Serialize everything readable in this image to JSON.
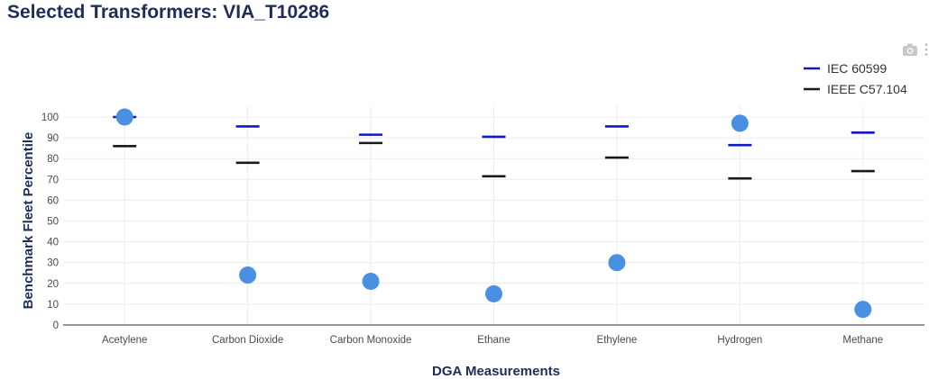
{
  "page": {
    "title": "Selected Transformers: VIA_T10286"
  },
  "toolbar": {
    "camera_icon": "camera-icon",
    "menu_icon": "vertical-dots-icon"
  },
  "chart_data": {
    "type": "scatter",
    "title": "",
    "xlabel": "DGA Measurements",
    "ylabel": "Benchmark Fleet Percentile",
    "ylim": [
      0,
      100
    ],
    "yticks": [
      0,
      10,
      20,
      30,
      40,
      50,
      60,
      70,
      80,
      90,
      100
    ],
    "grid": true,
    "legend_position": "top-right",
    "categories": [
      "Acetylene",
      "Carbon Dioxide",
      "Carbon Monoxide",
      "Ethane",
      "Ethylene",
      "Hydrogen",
      "Methane"
    ],
    "series": [
      {
        "name": "",
        "kind": "points",
        "color": "#4a90e2",
        "values": [
          100,
          24,
          21,
          15,
          30,
          97,
          7.5
        ]
      },
      {
        "name": "IEC 60599",
        "kind": "limit",
        "color": "#1018c8",
        "values": [
          100,
          95.5,
          91.5,
          90.5,
          95.5,
          86.5,
          92.5
        ]
      },
      {
        "name": "IEEE C57.104",
        "kind": "limit",
        "color": "#1a1a1a",
        "values": [
          86,
          78,
          87.5,
          71.5,
          80.5,
          70.5,
          74
        ]
      }
    ]
  }
}
